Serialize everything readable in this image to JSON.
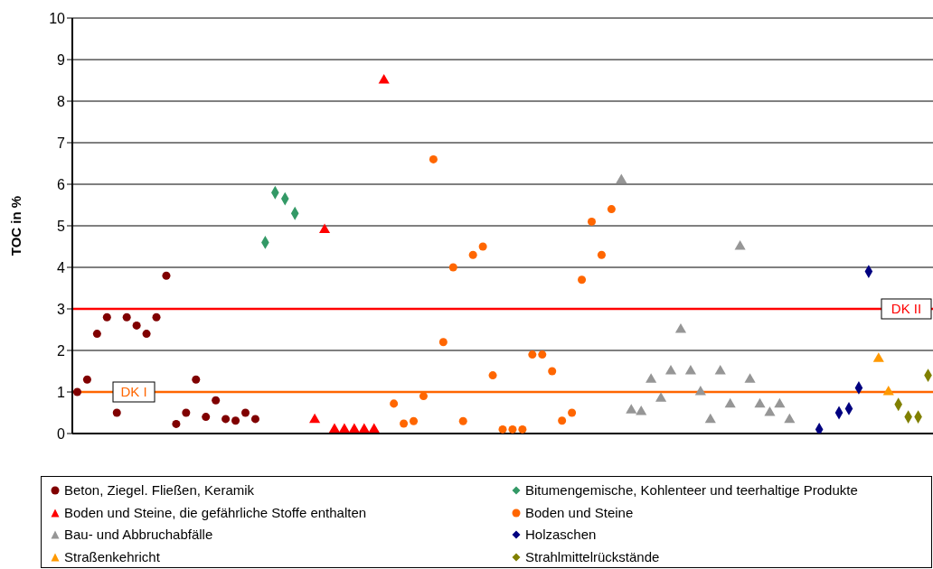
{
  "chart_data": {
    "type": "scatter",
    "ylabel": "TOC in %",
    "ylim": [
      0,
      10
    ],
    "yticks": [
      0,
      1,
      2,
      3,
      4,
      5,
      6,
      7,
      8,
      9,
      10
    ],
    "grid": "y",
    "tick_labels": "y",
    "legend": "bottom",
    "categories": [
      null,
      null,
      null,
      null,
      null,
      null,
      null,
      null,
      null,
      null,
      null,
      null,
      null,
      null,
      null,
      null,
      null,
      null,
      null,
      null,
      null,
      null,
      null,
      null,
      null,
      null,
      null,
      null,
      null,
      null,
      null,
      null,
      null,
      null,
      null,
      null,
      null,
      null,
      null,
      null,
      null,
      null,
      null,
      null,
      null,
      null,
      null,
      null,
      null,
      null,
      null,
      null,
      null,
      null,
      null,
      null,
      null,
      null,
      null,
      null,
      null,
      null,
      null,
      null,
      null,
      null,
      null,
      null,
      null,
      null,
      null,
      null,
      null,
      null,
      null,
      null,
      null,
      null,
      null,
      null,
      null,
      null,
      null,
      null,
      null,
      null,
      null
    ],
    "series": [
      {
        "name": "Beton, Ziegel. Fließen, Keramik",
        "color": "#800000",
        "marker": "circle",
        "values": [
          1.0,
          1.3,
          2.4,
          2.8,
          0.5,
          2.8,
          2.6,
          2.4,
          2.8,
          3.8,
          0.23,
          0.5,
          1.3,
          0.4,
          0.8,
          0.35,
          0.31,
          0.5,
          0.35,
          null,
          null,
          null,
          null,
          null,
          null,
          null,
          null,
          null,
          null,
          null,
          null,
          null,
          null,
          null,
          null,
          null,
          null,
          null,
          null,
          null,
          null,
          null,
          null,
          null,
          null,
          null,
          null,
          null,
          null,
          null,
          null,
          null,
          null,
          null,
          null,
          null,
          null,
          null,
          null,
          null,
          null,
          null,
          null,
          null,
          null,
          null,
          null,
          null,
          null,
          null,
          null,
          null,
          null,
          null,
          null,
          null,
          null,
          null,
          null,
          null,
          null,
          null,
          null,
          null,
          null,
          null,
          null
        ]
      },
      {
        "name": "Bitumengemische, Kohlenteer und teerhaltige Produkte",
        "color": "#339966",
        "marker": "diamond",
        "values": [
          null,
          null,
          null,
          null,
          null,
          null,
          null,
          null,
          null,
          null,
          null,
          null,
          null,
          null,
          null,
          null,
          null,
          null,
          null,
          4.6,
          5.8,
          5.65,
          5.3,
          null,
          null,
          null,
          null,
          null,
          null,
          null,
          null,
          null,
          null,
          null,
          null,
          null,
          null,
          null,
          null,
          null,
          null,
          null,
          null,
          null,
          null,
          null,
          null,
          null,
          null,
          null,
          null,
          null,
          null,
          null,
          null,
          null,
          null,
          null,
          null,
          null,
          null,
          null,
          null,
          null,
          null,
          null,
          null,
          null,
          null,
          null,
          null,
          null,
          null,
          null,
          null,
          null,
          null,
          null,
          null,
          null,
          null,
          null,
          null,
          null,
          null,
          null,
          null
        ]
      },
      {
        "name": "Boden und Steine, die gefährliche Stoffe enthalten",
        "color": "#ff0000",
        "marker": "triangle",
        "values": [
          null,
          null,
          null,
          null,
          null,
          null,
          null,
          null,
          null,
          null,
          null,
          null,
          null,
          null,
          null,
          null,
          null,
          null,
          null,
          null,
          null,
          null,
          null,
          null,
          0.33,
          4.9,
          0.1,
          0.1,
          0.1,
          0.1,
          0.1,
          8.5,
          null,
          null,
          null,
          null,
          null,
          null,
          null,
          null,
          null,
          null,
          null,
          null,
          null,
          null,
          null,
          null,
          null,
          null,
          null,
          null,
          null,
          null,
          null,
          null,
          null,
          null,
          null,
          null,
          null,
          null,
          null,
          null,
          null,
          null,
          null,
          null,
          null,
          null,
          null,
          null,
          null,
          null,
          null,
          null,
          null,
          null,
          null,
          null,
          null,
          null,
          null,
          null,
          null,
          null,
          null
        ]
      },
      {
        "name": "Boden und Steine",
        "color": "#ff6600",
        "marker": "circle",
        "values": [
          null,
          null,
          null,
          null,
          null,
          null,
          null,
          null,
          null,
          null,
          null,
          null,
          null,
          null,
          null,
          null,
          null,
          null,
          null,
          null,
          null,
          null,
          null,
          null,
          null,
          null,
          null,
          null,
          null,
          null,
          null,
          null,
          0.72,
          0.24,
          0.3,
          0.9,
          6.6,
          2.2,
          4.0,
          0.3,
          4.3,
          4.5,
          1.4,
          0.1,
          0.1,
          0.1,
          1.9,
          1.9,
          1.5,
          0.31,
          0.5,
          3.7,
          5.1,
          4.3,
          5.4,
          null,
          null,
          null,
          null,
          null,
          null,
          null,
          null,
          null,
          null,
          null,
          null,
          null,
          null,
          null,
          null,
          null,
          null,
          null,
          null,
          null,
          null,
          null,
          null,
          null,
          null,
          null,
          null,
          null,
          null,
          null,
          null
        ]
      },
      {
        "name": "Bau- und Abbruchabfälle",
        "color": "#969696",
        "marker": "triangle",
        "values": [
          null,
          null,
          null,
          null,
          null,
          null,
          null,
          null,
          null,
          null,
          null,
          null,
          null,
          null,
          null,
          null,
          null,
          null,
          null,
          null,
          null,
          null,
          null,
          null,
          null,
          null,
          null,
          null,
          null,
          null,
          null,
          null,
          null,
          null,
          null,
          null,
          null,
          null,
          null,
          null,
          null,
          null,
          null,
          null,
          null,
          null,
          null,
          null,
          null,
          null,
          null,
          null,
          null,
          null,
          null,
          6.1,
          0.56,
          0.52,
          1.3,
          0.84,
          1.5,
          2.5,
          1.5,
          1.0,
          0.33,
          1.5,
          0.7,
          4.5,
          1.3,
          0.7,
          0.5,
          0.7,
          0.33,
          null,
          null,
          null,
          null,
          null,
          null,
          null,
          null,
          null,
          null,
          null,
          null,
          null,
          null
        ]
      },
      {
        "name": "Holzaschen",
        "color": "#000080",
        "marker": "diamond",
        "values": [
          null,
          null,
          null,
          null,
          null,
          null,
          null,
          null,
          null,
          null,
          null,
          null,
          null,
          null,
          null,
          null,
          null,
          null,
          null,
          null,
          null,
          null,
          null,
          null,
          null,
          null,
          null,
          null,
          null,
          null,
          null,
          null,
          null,
          null,
          null,
          null,
          null,
          null,
          null,
          null,
          null,
          null,
          null,
          null,
          null,
          null,
          null,
          null,
          null,
          null,
          null,
          null,
          null,
          null,
          null,
          null,
          null,
          null,
          null,
          null,
          null,
          null,
          null,
          null,
          null,
          null,
          null,
          null,
          null,
          null,
          null,
          null,
          null,
          null,
          null,
          0.1,
          null,
          0.5,
          0.6,
          1.1,
          3.9,
          null,
          null,
          null,
          null,
          null,
          null
        ]
      },
      {
        "name": "Straßenkehricht",
        "color": "#ff9900",
        "marker": "triangle",
        "values": [
          null,
          null,
          null,
          null,
          null,
          null,
          null,
          null,
          null,
          null,
          null,
          null,
          null,
          null,
          null,
          null,
          null,
          null,
          null,
          null,
          null,
          null,
          null,
          null,
          null,
          null,
          null,
          null,
          null,
          null,
          null,
          null,
          null,
          null,
          null,
          null,
          null,
          null,
          null,
          null,
          null,
          null,
          null,
          null,
          null,
          null,
          null,
          null,
          null,
          null,
          null,
          null,
          null,
          null,
          null,
          null,
          null,
          null,
          null,
          null,
          null,
          null,
          null,
          null,
          null,
          null,
          null,
          null,
          null,
          null,
          null,
          null,
          null,
          null,
          null,
          null,
          null,
          null,
          null,
          null,
          null,
          1.8,
          1.0,
          null,
          null,
          null,
          null
        ]
      },
      {
        "name": "Strahlmittelrückstände",
        "color": "#808000",
        "marker": "diamond",
        "values": [
          null,
          null,
          null,
          null,
          null,
          null,
          null,
          null,
          null,
          null,
          null,
          null,
          null,
          null,
          null,
          null,
          null,
          null,
          null,
          null,
          null,
          null,
          null,
          null,
          null,
          null,
          null,
          null,
          null,
          null,
          null,
          null,
          null,
          null,
          null,
          null,
          null,
          null,
          null,
          null,
          null,
          null,
          null,
          null,
          null,
          null,
          null,
          null,
          null,
          null,
          null,
          null,
          null,
          null,
          null,
          null,
          null,
          null,
          null,
          null,
          null,
          null,
          null,
          null,
          null,
          null,
          null,
          null,
          null,
          null,
          null,
          null,
          null,
          null,
          null,
          null,
          null,
          null,
          null,
          null,
          null,
          null,
          null,
          0.7,
          0.4,
          0.4,
          1.4
        ]
      }
    ],
    "ref_lines": [
      {
        "axis": "y",
        "value": 1,
        "label": "DK I",
        "color": "#ff6600"
      },
      {
        "axis": "y",
        "value": 3,
        "label": "DK II",
        "color": "#ff0000"
      }
    ]
  }
}
